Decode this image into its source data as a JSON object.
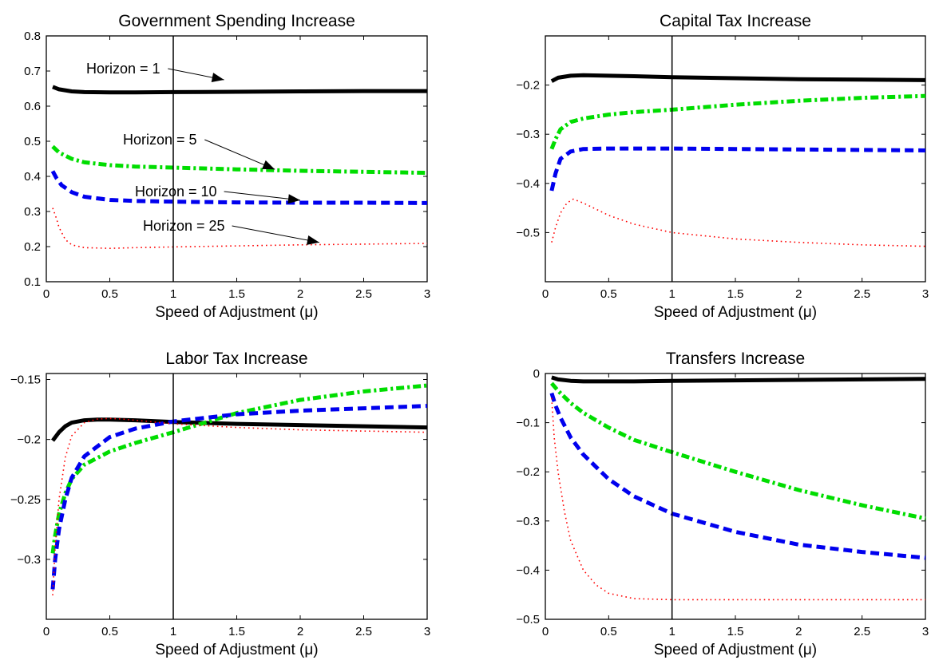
{
  "chart_data": [
    {
      "type": "line",
      "title": "Government Spending Increase",
      "xlabel": "Speed of Adjustment (μ)",
      "ylabel": "",
      "xlim": [
        0,
        3
      ],
      "ylim": [
        0.1,
        0.8
      ],
      "xticks": [
        "0",
        "0.5",
        "1",
        "1.5",
        "2",
        "2.5",
        "3"
      ],
      "yticks": [
        "0.1",
        "0.2",
        "0.3",
        "0.4",
        "0.5",
        "0.6",
        "0.7",
        "0.8"
      ],
      "vline": 1,
      "annotations": [
        {
          "text": "Horizon = 1",
          "series": 0,
          "x": 1.4,
          "y": 0.675
        },
        {
          "text": "Horizon = 5",
          "series": 1,
          "x": 1.8,
          "y": 0.42
        },
        {
          "text": "Horizon = 10",
          "series": 2,
          "x": 2.0,
          "y": 0.332
        },
        {
          "text": "Horizon = 25",
          "series": 3,
          "x": 2.15,
          "y": 0.212
        }
      ],
      "series": [
        {
          "style": "solid",
          "color": "#000000",
          "x": [
            0.05,
            0.1,
            0.2,
            0.3,
            0.5,
            0.7,
            1,
            1.5,
            2,
            2.5,
            3
          ],
          "y": [
            0.655,
            0.648,
            0.642,
            0.64,
            0.639,
            0.639,
            0.64,
            0.641,
            0.642,
            0.643,
            0.643
          ]
        },
        {
          "style": "dashdot",
          "color": "#00dd00",
          "x": [
            0.05,
            0.1,
            0.2,
            0.3,
            0.5,
            0.7,
            1,
            1.5,
            2,
            2.5,
            3
          ],
          "y": [
            0.485,
            0.468,
            0.45,
            0.44,
            0.432,
            0.428,
            0.425,
            0.42,
            0.416,
            0.413,
            0.41
          ]
        },
        {
          "style": "dashed",
          "color": "#0000ee",
          "x": [
            0.05,
            0.08,
            0.12,
            0.2,
            0.3,
            0.5,
            0.7,
            1,
            1.5,
            2,
            2.5,
            3
          ],
          "y": [
            0.415,
            0.395,
            0.375,
            0.355,
            0.342,
            0.333,
            0.33,
            0.328,
            0.326,
            0.325,
            0.325,
            0.324
          ]
        },
        {
          "style": "dotted",
          "color": "#ff0000",
          "x": [
            0.05,
            0.08,
            0.1,
            0.15,
            0.2,
            0.3,
            0.5,
            0.7,
            1,
            1.5,
            2,
            2.5,
            3
          ],
          "y": [
            0.31,
            0.28,
            0.255,
            0.22,
            0.205,
            0.197,
            0.195,
            0.197,
            0.199,
            0.202,
            0.205,
            0.207,
            0.209
          ]
        }
      ]
    },
    {
      "type": "line",
      "title": "Capital Tax Increase",
      "xlabel": "Speed of Adjustment (μ)",
      "ylabel": "",
      "xlim": [
        0,
        3
      ],
      "ylim": [
        -0.6,
        -0.1
      ],
      "xticks": [
        "0",
        "0.5",
        "1",
        "1.5",
        "2",
        "2.5",
        "3"
      ],
      "yticks": [
        "-0.5",
        "-0.4",
        "-0.3",
        "-0.2"
      ],
      "vline": 1,
      "series": [
        {
          "style": "solid",
          "color": "#000000",
          "x": [
            0.05,
            0.1,
            0.2,
            0.3,
            0.5,
            0.7,
            1,
            1.5,
            2,
            2.5,
            3
          ],
          "y": [
            -0.192,
            -0.185,
            -0.181,
            -0.18,
            -0.181,
            -0.182,
            -0.184,
            -0.186,
            -0.188,
            -0.189,
            -0.19
          ]
        },
        {
          "style": "dashdot",
          "color": "#00dd00",
          "x": [
            0.05,
            0.08,
            0.12,
            0.2,
            0.3,
            0.5,
            0.7,
            1,
            1.5,
            2,
            2.5,
            3
          ],
          "y": [
            -0.33,
            -0.31,
            -0.29,
            -0.275,
            -0.268,
            -0.26,
            -0.255,
            -0.25,
            -0.24,
            -0.232,
            -0.226,
            -0.222
          ]
        },
        {
          "style": "dashed",
          "color": "#0000ee",
          "x": [
            0.05,
            0.08,
            0.12,
            0.2,
            0.3,
            0.5,
            0.7,
            1,
            1.5,
            2,
            2.5,
            3
          ],
          "y": [
            -0.415,
            -0.38,
            -0.35,
            -0.335,
            -0.33,
            -0.329,
            -0.329,
            -0.329,
            -0.33,
            -0.331,
            -0.332,
            -0.333
          ]
        },
        {
          "style": "dotted",
          "color": "#ff0000",
          "x": [
            0.05,
            0.08,
            0.12,
            0.17,
            0.22,
            0.3,
            0.5,
            0.7,
            1,
            1.5,
            2,
            2.5,
            3
          ],
          "y": [
            -0.52,
            -0.49,
            -0.46,
            -0.44,
            -0.432,
            -0.44,
            -0.465,
            -0.483,
            -0.5,
            -0.513,
            -0.52,
            -0.525,
            -0.528
          ]
        }
      ]
    },
    {
      "type": "line",
      "title": "Labor Tax Increase",
      "xlabel": "Speed of Adjustment (μ)",
      "ylabel": "",
      "xlim": [
        0,
        3
      ],
      "ylim": [
        -0.35,
        -0.145
      ],
      "xticks": [
        "0",
        "0.5",
        "1",
        "1.5",
        "2",
        "2.5",
        "3"
      ],
      "yticks": [
        "-0.3",
        "-0.25",
        "-0.2",
        "-0.15"
      ],
      "vline": 1,
      "series": [
        {
          "style": "solid",
          "color": "#000000",
          "x": [
            0.05,
            0.1,
            0.15,
            0.2,
            0.3,
            0.4,
            0.5,
            0.7,
            1,
            1.5,
            2,
            2.5,
            3
          ],
          "y": [
            -0.201,
            -0.194,
            -0.189,
            -0.186,
            -0.184,
            -0.1835,
            -0.1835,
            -0.184,
            -0.1855,
            -0.187,
            -0.188,
            -0.189,
            -0.19
          ]
        },
        {
          "style": "dashdot",
          "color": "#00dd00",
          "x": [
            0.05,
            0.07,
            0.1,
            0.15,
            0.2,
            0.3,
            0.5,
            0.7,
            1,
            1.25,
            1.5,
            2,
            2.5,
            3
          ],
          "y": [
            -0.295,
            -0.28,
            -0.262,
            -0.245,
            -0.233,
            -0.221,
            -0.21,
            -0.203,
            -0.194,
            -0.186,
            -0.178,
            -0.167,
            -0.16,
            -0.155
          ]
        },
        {
          "style": "dashed",
          "color": "#0000ee",
          "x": [
            0.05,
            0.07,
            0.1,
            0.15,
            0.2,
            0.3,
            0.5,
            0.7,
            1,
            1.5,
            2,
            2.5,
            3
          ],
          "y": [
            -0.325,
            -0.3,
            -0.275,
            -0.25,
            -0.232,
            -0.214,
            -0.198,
            -0.191,
            -0.185,
            -0.179,
            -0.176,
            -0.174,
            -0.172
          ]
        },
        {
          "style": "dotted",
          "color": "#ff0000",
          "x": [
            0.05,
            0.07,
            0.1,
            0.15,
            0.2,
            0.3,
            0.4,
            0.5,
            0.6,
            0.8,
            1,
            1.5,
            2,
            2.5,
            3
          ],
          "y": [
            -0.33,
            -0.29,
            -0.25,
            -0.215,
            -0.197,
            -0.186,
            -0.183,
            -0.1825,
            -0.183,
            -0.185,
            -0.187,
            -0.19,
            -0.192,
            -0.193,
            -0.194
          ]
        }
      ]
    },
    {
      "type": "line",
      "title": "Transfers Increase",
      "xlabel": "Speed of Adjustment (μ)",
      "ylabel": "",
      "xlim": [
        0,
        3
      ],
      "ylim": [
        -0.5,
        0
      ],
      "xticks": [
        "0",
        "0.5",
        "1",
        "1.5",
        "2",
        "2.5",
        "3"
      ],
      "yticks": [
        "-0.5",
        "-0.4",
        "-0.3",
        "-0.2",
        "-0.1",
        "0"
      ],
      "vline": 1,
      "series": [
        {
          "style": "solid",
          "color": "#000000",
          "x": [
            0.05,
            0.1,
            0.2,
            0.3,
            0.5,
            0.7,
            1,
            1.5,
            2,
            2.5,
            3
          ],
          "y": [
            -0.008,
            -0.012,
            -0.015,
            -0.016,
            -0.016,
            -0.016,
            -0.015,
            -0.014,
            -0.013,
            -0.012,
            -0.011
          ]
        },
        {
          "style": "dashdot",
          "color": "#00dd00",
          "x": [
            0.05,
            0.1,
            0.2,
            0.3,
            0.5,
            0.7,
            1,
            1.5,
            2,
            2.5,
            3
          ],
          "y": [
            -0.02,
            -0.035,
            -0.06,
            -0.08,
            -0.11,
            -0.135,
            -0.16,
            -0.2,
            -0.237,
            -0.268,
            -0.295
          ]
        },
        {
          "style": "dashed",
          "color": "#0000ee",
          "x": [
            0.05,
            0.08,
            0.12,
            0.2,
            0.3,
            0.5,
            0.7,
            1,
            1.5,
            2,
            2.5,
            3
          ],
          "y": [
            -0.04,
            -0.065,
            -0.09,
            -0.13,
            -0.165,
            -0.215,
            -0.25,
            -0.285,
            -0.322,
            -0.348,
            -0.363,
            -0.375
          ]
        },
        {
          "style": "dotted",
          "color": "#ff0000",
          "x": [
            0.05,
            0.07,
            0.1,
            0.15,
            0.2,
            0.3,
            0.4,
            0.5,
            0.7,
            1,
            1.5,
            2,
            2.5,
            3
          ],
          "y": [
            -0.05,
            -0.13,
            -0.2,
            -0.28,
            -0.34,
            -0.4,
            -0.43,
            -0.447,
            -0.458,
            -0.46,
            -0.46,
            -0.46,
            -0.46,
            -0.46
          ]
        }
      ]
    }
  ]
}
